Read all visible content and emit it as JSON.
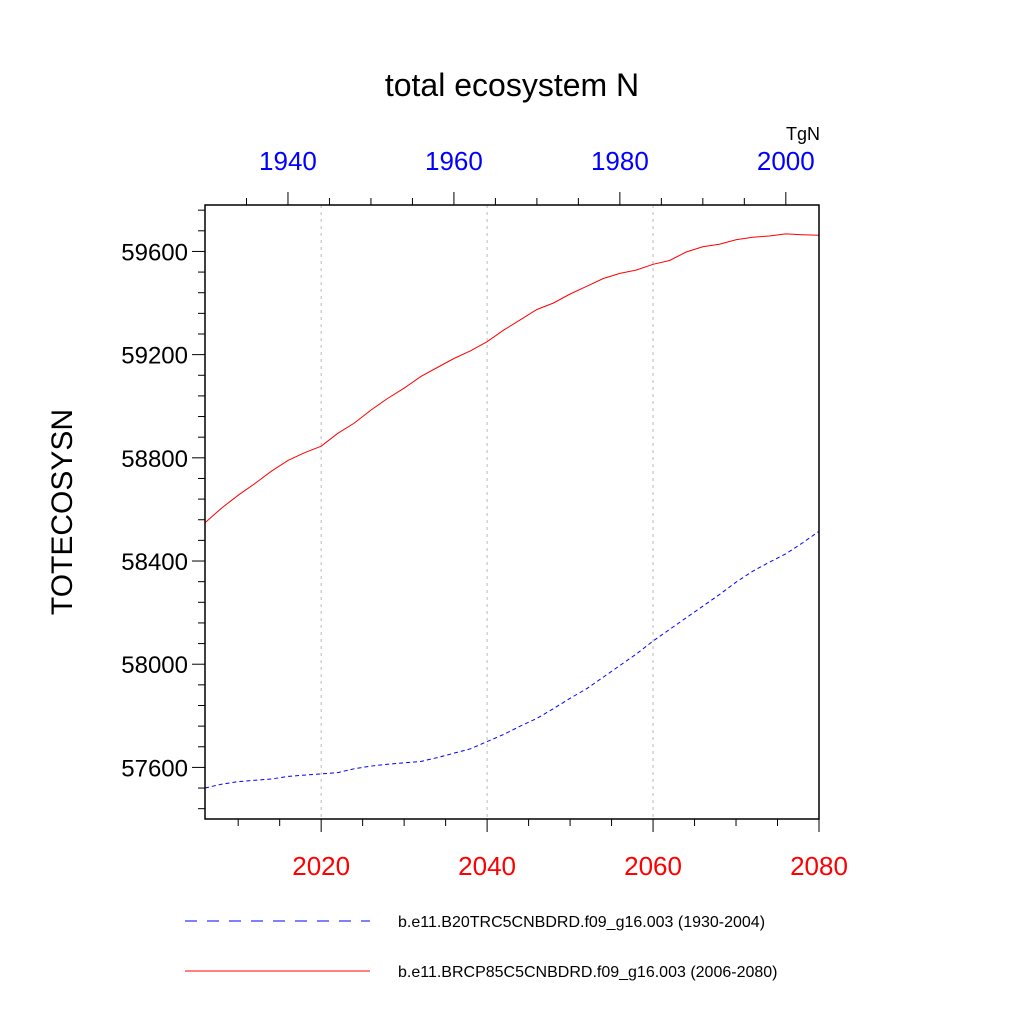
{
  "chart_data": {
    "type": "line",
    "title": "total ecosystem N",
    "ylabel": "TOTECOSYSN",
    "units": "TgN",
    "ylim": [
      57400,
      59780
    ],
    "yticks": [
      57600,
      58000,
      58400,
      58800,
      59200,
      59600
    ],
    "ytick_labels": [
      "57600",
      "58000",
      "58400",
      "58800",
      "59200",
      "59600"
    ],
    "xaxis_bottom": {
      "range": [
        2006,
        2080
      ],
      "ticks": [
        2020,
        2040,
        2060,
        2080
      ],
      "tick_labels": [
        "2020",
        "2040",
        "2060",
        "2080"
      ],
      "label_color": "#ff0000"
    },
    "xaxis_top": {
      "range": [
        1930,
        2004
      ],
      "ticks": [
        1940,
        1960,
        1980,
        2000
      ],
      "tick_labels": [
        "1940",
        "1960",
        "1980",
        "2000"
      ],
      "label_color": "#0000ff"
    },
    "grid": "vertical dotted at bottom major ticks",
    "legend": "bottom",
    "series": [
      {
        "name": "b.e11.B20TRC5CNBDRD.f09_g16.003 (1930-2004)",
        "axis": "top",
        "color": "#0000ff",
        "dash": "dashed",
        "x": [
          1930,
          1932,
          1934,
          1936,
          1938,
          1940,
          1942,
          1944,
          1946,
          1948,
          1950,
          1952,
          1954,
          1956,
          1958,
          1960,
          1962,
          1964,
          1966,
          1968,
          1970,
          1972,
          1974,
          1976,
          1978,
          1980,
          1982,
          1984,
          1986,
          1988,
          1990,
          1992,
          1994,
          1996,
          1998,
          2000,
          2002,
          2004
        ],
        "values": [
          57520,
          57535,
          57545,
          57550,
          57555,
          57565,
          57570,
          57575,
          57580,
          57595,
          57605,
          57612,
          57618,
          57623,
          57638,
          57655,
          57672,
          57700,
          57728,
          57760,
          57790,
          57828,
          57868,
          57905,
          57950,
          57995,
          58040,
          58090,
          58135,
          58180,
          58225,
          58270,
          58318,
          58360,
          58395,
          58428,
          58470,
          58515
        ]
      },
      {
        "name": "b.e11.BRCP85C5CNBDRD.f09_g16.003 (2006-2080)",
        "axis": "bottom",
        "color": "#ff0000",
        "dash": "solid",
        "x": [
          2006,
          2008,
          2010,
          2012,
          2014,
          2016,
          2018,
          2020,
          2022,
          2024,
          2026,
          2028,
          2030,
          2032,
          2034,
          2036,
          2038,
          2040,
          2042,
          2044,
          2046,
          2048,
          2050,
          2052,
          2054,
          2056,
          2058,
          2060,
          2062,
          2064,
          2066,
          2068,
          2070,
          2072,
          2074,
          2076,
          2078,
          2080
        ],
        "values": [
          58548,
          58605,
          58655,
          58700,
          58748,
          58790,
          58820,
          58845,
          58895,
          58935,
          58985,
          59030,
          59070,
          59115,
          59150,
          59185,
          59215,
          59250,
          59295,
          59335,
          59375,
          59400,
          59435,
          59465,
          59495,
          59515,
          59528,
          59550,
          59565,
          59598,
          59618,
          59628,
          59645,
          59655,
          59660,
          59668,
          59665,
          59663
        ]
      }
    ]
  }
}
